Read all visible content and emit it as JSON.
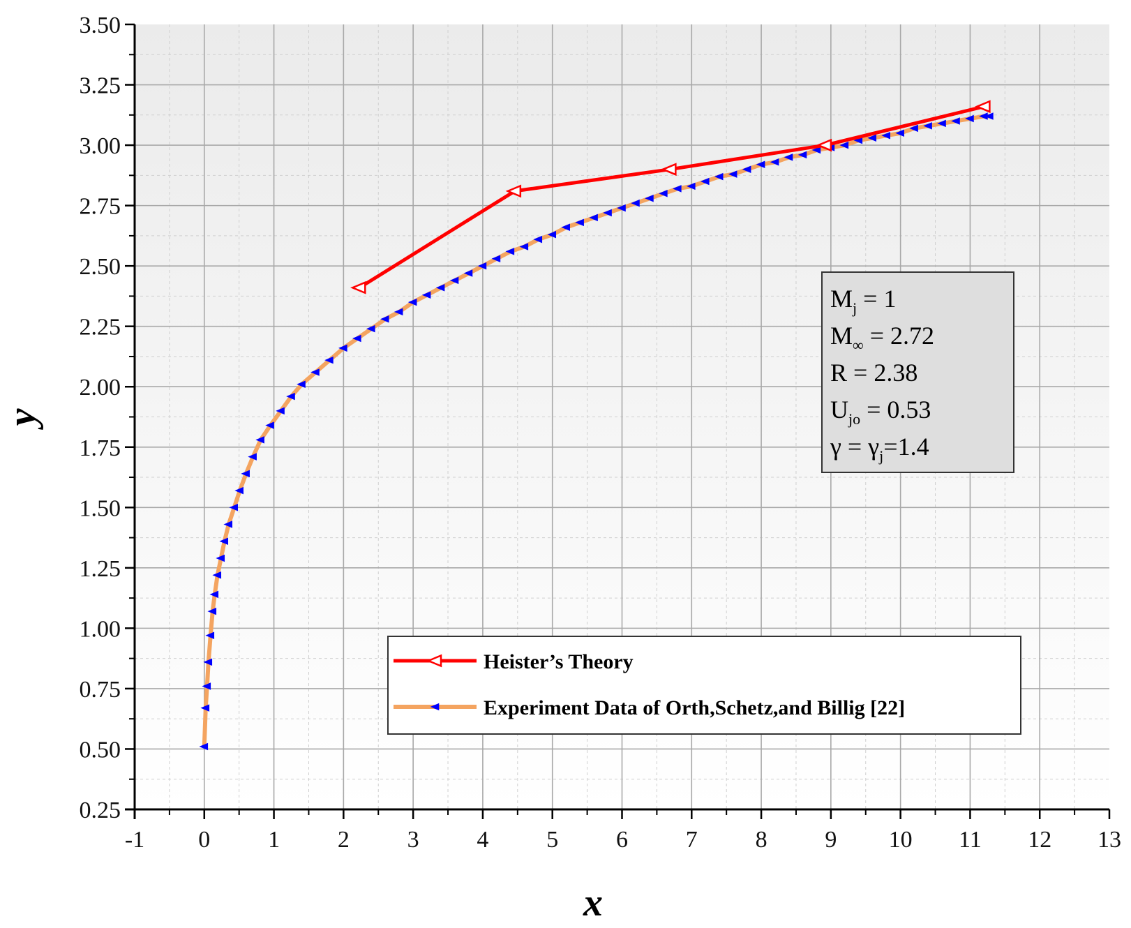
{
  "chart_data": {
    "type": "line",
    "xlabel": "x",
    "ylabel": "y",
    "xlim": [
      -1,
      13
    ],
    "ylim": [
      0.25,
      3.5
    ],
    "x_ticks": [
      "-1",
      "0",
      "1",
      "2",
      "3",
      "4",
      "5",
      "6",
      "7",
      "8",
      "9",
      "10",
      "11",
      "12",
      "13"
    ],
    "y_ticks": [
      "0.25",
      "0.50",
      "0.75",
      "1.00",
      "1.25",
      "1.50",
      "1.75",
      "2.00",
      "2.25",
      "2.50",
      "2.75",
      "3.00",
      "3.25",
      "3.50"
    ],
    "grid": true,
    "minor_grid": true,
    "legend_position": "bottom-right",
    "series": [
      {
        "name": "Heister’s Theory",
        "color": "#ff0000",
        "marker": "open-triangle-left",
        "x": [
          2.23,
          4.46,
          6.69,
          8.92,
          11.2
        ],
        "y": [
          2.41,
          2.81,
          2.9,
          3.0,
          3.16
        ]
      },
      {
        "name": "Experiment Data of Orth,Schetz,and Billig  [22]",
        "color": "#f4a460",
        "marker_color": "#0000ff",
        "marker": "filled-triangle-left",
        "x": [
          0.0,
          0.02,
          0.04,
          0.06,
          0.09,
          0.12,
          0.15,
          0.19,
          0.24,
          0.29,
          0.35,
          0.43,
          0.51,
          0.6,
          0.7,
          0.81,
          0.95,
          1.1,
          1.25,
          1.4,
          1.6,
          1.8,
          2.0,
          2.2,
          2.4,
          2.6,
          2.8,
          3.0,
          3.2,
          3.4,
          3.6,
          3.8,
          4.0,
          4.2,
          4.4,
          4.6,
          4.8,
          5.0,
          5.2,
          5.4,
          5.6,
          5.8,
          6.0,
          6.2,
          6.4,
          6.6,
          6.8,
          7.0,
          7.2,
          7.4,
          7.6,
          7.8,
          8.0,
          8.2,
          8.4,
          8.6,
          8.8,
          9.0,
          9.2,
          9.4,
          9.6,
          9.8,
          10.0,
          10.2,
          10.4,
          10.6,
          10.8,
          11.0,
          11.2,
          11.28
        ],
        "y": [
          0.51,
          0.67,
          0.76,
          0.86,
          0.97,
          1.07,
          1.14,
          1.22,
          1.29,
          1.36,
          1.43,
          1.5,
          1.57,
          1.64,
          1.71,
          1.78,
          1.84,
          1.9,
          1.96,
          2.01,
          2.06,
          2.11,
          2.16,
          2.2,
          2.24,
          2.28,
          2.31,
          2.35,
          2.38,
          2.41,
          2.44,
          2.47,
          2.5,
          2.53,
          2.56,
          2.58,
          2.61,
          2.63,
          2.66,
          2.68,
          2.7,
          2.72,
          2.74,
          2.76,
          2.78,
          2.8,
          2.82,
          2.83,
          2.85,
          2.87,
          2.88,
          2.9,
          2.92,
          2.93,
          2.95,
          2.96,
          2.98,
          2.99,
          3.0,
          3.02,
          3.03,
          3.04,
          3.05,
          3.07,
          3.08,
          3.09,
          3.1,
          3.11,
          3.12,
          3.12
        ]
      }
    ],
    "annotation": {
      "lines": [
        {
          "main": "M",
          "sub": "j",
          "rest": "  =   1"
        },
        {
          "main": "M",
          "sub": "∞",
          "rest": " = 2.72"
        },
        {
          "main": " R",
          "sub": "",
          "rest": "   = 2.38"
        },
        {
          "main": "U",
          "sub": "jo",
          "rest": "  = 0.53"
        },
        {
          "main": "  γ",
          "sub": "",
          "rest": "   = γ",
          "sub2": "j",
          "rest2": "=1.4"
        }
      ]
    }
  }
}
